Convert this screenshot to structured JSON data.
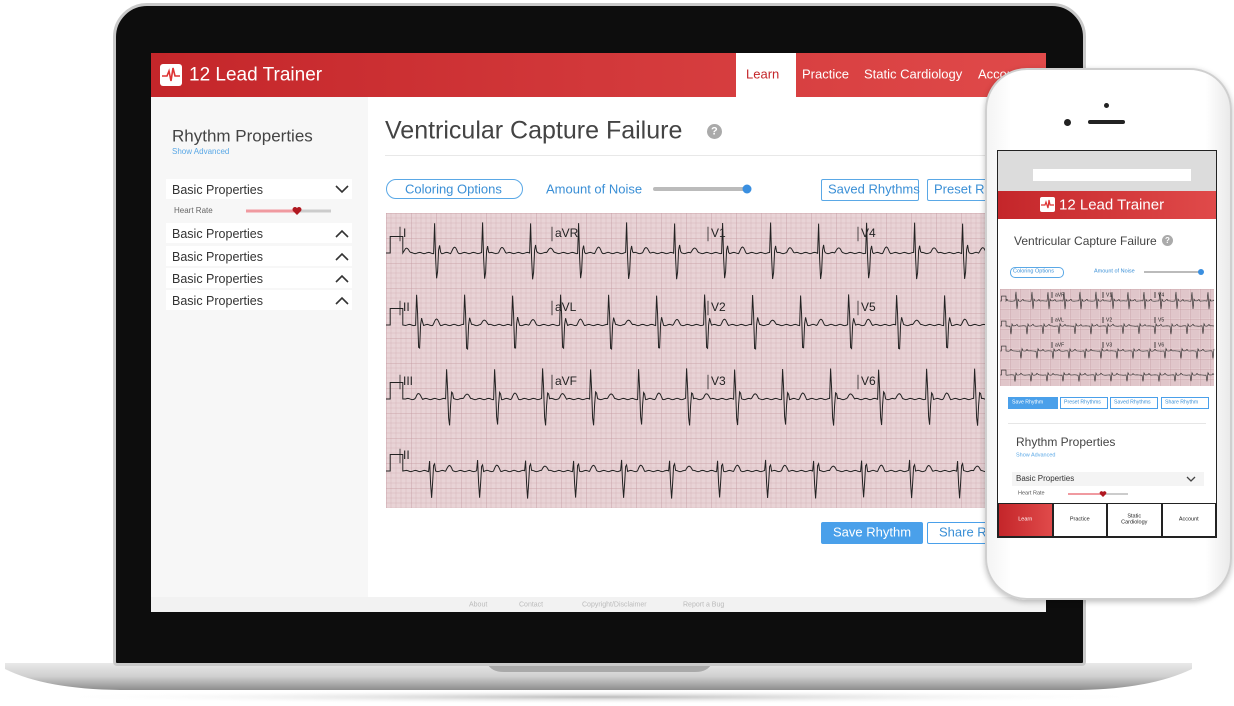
{
  "laptop": {
    "brand": "12 Lead Trainer",
    "nav": [
      "Learn",
      "Practice",
      "Static Cardiology",
      "Account"
    ],
    "sidebar": {
      "title": "Rhythm Properties",
      "link": "Show Advanced",
      "sections": [
        "Basic Properties",
        "Basic Properties",
        "Basic Properties",
        "Basic Properties",
        "Basic Properties"
      ],
      "slider_label": "Heart Rate"
    },
    "main": {
      "title": "Ventricular Capture Failure",
      "help": "?",
      "coloring_button": "Coloring Options",
      "noise_label": "Amount of Noise",
      "top_buttons": [
        "Saved Rhythms",
        "Preset Rhythms"
      ],
      "leads": [
        "I",
        "aVR",
        "V1",
        "V4",
        "II",
        "aVL",
        "V2",
        "V5",
        "III",
        "aVF",
        "V3",
        "V6",
        "II"
      ],
      "bottom_buttons": [
        "Save Rhythm",
        "Share Rhythm"
      ]
    },
    "footer": [
      "About",
      "Contact",
      "Copyright/Disclaimer",
      "Report a Bug"
    ]
  },
  "phone": {
    "brand": "12 Lead Trainer",
    "title": "Ventricular Capture Failure",
    "help": "?",
    "coloring_button": "Coloring Options",
    "noise_label": "Amount of Noise",
    "leads": [
      "aVR",
      "V1",
      "V4",
      "aVL",
      "V2",
      "V5",
      "aVF",
      "V3",
      "V6"
    ],
    "actions": [
      "Save Rhythm",
      "Preset Rhythms",
      "Saved Rhythms",
      "Share Rhythm"
    ],
    "sidebar_title": "Rhythm Properties",
    "sidebar_link": "Show Advanced",
    "section": "Basic Properties",
    "slider_label": "Heart Rate",
    "tabs": [
      "Learn",
      "Practice",
      "Static Cardiology",
      "Account"
    ]
  }
}
